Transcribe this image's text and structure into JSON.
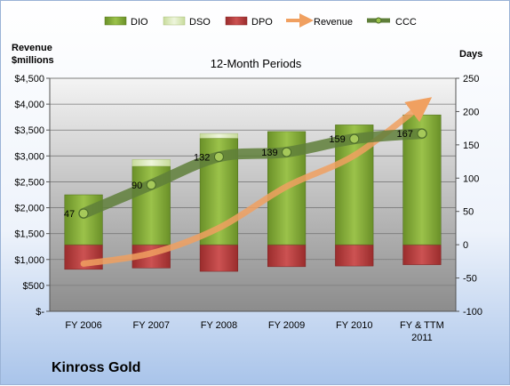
{
  "chart_data": {
    "type": "bar",
    "title": "12-Month Periods",
    "company": "Kinross Gold",
    "left_axis_label_line1": "Revenue",
    "left_axis_label_line2": "$millions",
    "right_axis_label": "Days",
    "categories": [
      "FY 2006",
      "FY 2007",
      "FY 2008",
      "FY 2009",
      "FY 2010",
      "FY & TTM 2011"
    ],
    "left_ylim": [
      0,
      4500
    ],
    "left_ticks": [
      "$-",
      "$500",
      "$1,000",
      "$1,500",
      "$2,000",
      "$2,500",
      "$3,000",
      "$3,500",
      "$4,000",
      "$4,500"
    ],
    "right_ylim": [
      -100,
      250
    ],
    "right_ticks": [
      "-100",
      "-50",
      "0",
      "50",
      "100",
      "150",
      "200",
      "250"
    ],
    "series": [
      {
        "name": "DIO",
        "axis": "days",
        "values": [
          75,
          118,
          160,
          170,
          180,
          195
        ],
        "color": "#78a22f"
      },
      {
        "name": "DSO",
        "axis": "days",
        "values": [
          0,
          10,
          7,
          0,
          0,
          0
        ],
        "color": "#d7e6b5"
      },
      {
        "name": "DPO",
        "axis": "days",
        "values": [
          -37,
          -35,
          -40,
          -33,
          -32,
          -30
        ],
        "color": "#b83a3a"
      },
      {
        "name": "Revenue",
        "axis": "revenue",
        "values": [
          920,
          1120,
          1610,
          2410,
          3010,
          3990
        ],
        "color": "#f0a060"
      },
      {
        "name": "CCC",
        "axis": "days",
        "values": [
          47,
          90,
          132,
          139,
          159,
          167
        ],
        "color": "#5f7f3a"
      }
    ],
    "data_labels": [
      "47",
      "90",
      "132",
      "139",
      "159",
      "167"
    ],
    "legend_position": "top",
    "grid": true
  }
}
